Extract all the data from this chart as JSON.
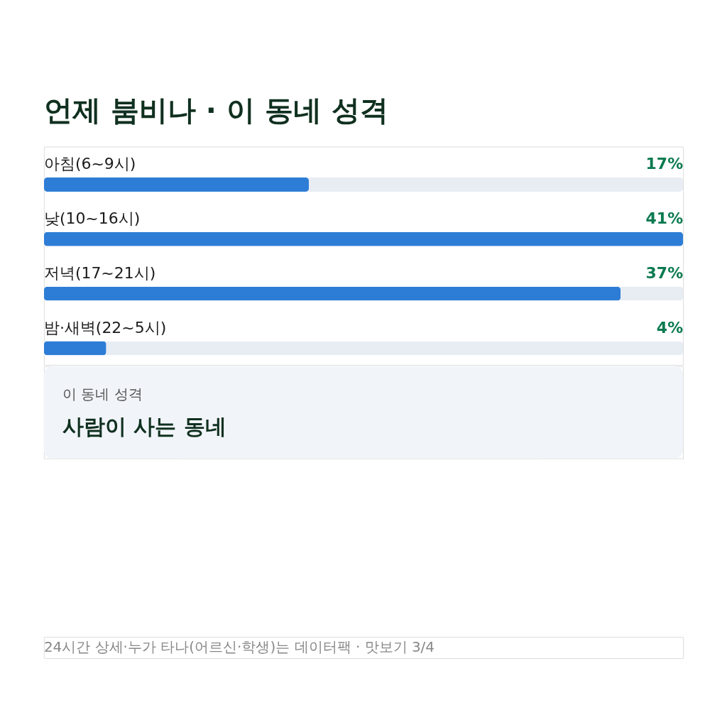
{
  "chart_data": {
    "type": "bar",
    "orientation": "horizontal",
    "title": "언제 붐비나 · 이 동네 성격",
    "categories": [
      "아침(6~9시)",
      "낮(10~16시)",
      "저녁(17~21시)",
      "밤·새벽(22~5시)"
    ],
    "values": [
      17,
      41,
      37,
      4
    ],
    "value_labels": [
      "17%",
      "41%",
      "37%",
      "4%"
    ],
    "color": "#2d7dd6",
    "annotations": [
      "이 동네 성격",
      "사람이 사는 동네",
      "24시간 상세·누가 타나(어르신·학생)는 데이터팩 · 맛보기 3/4"
    ]
  }
}
